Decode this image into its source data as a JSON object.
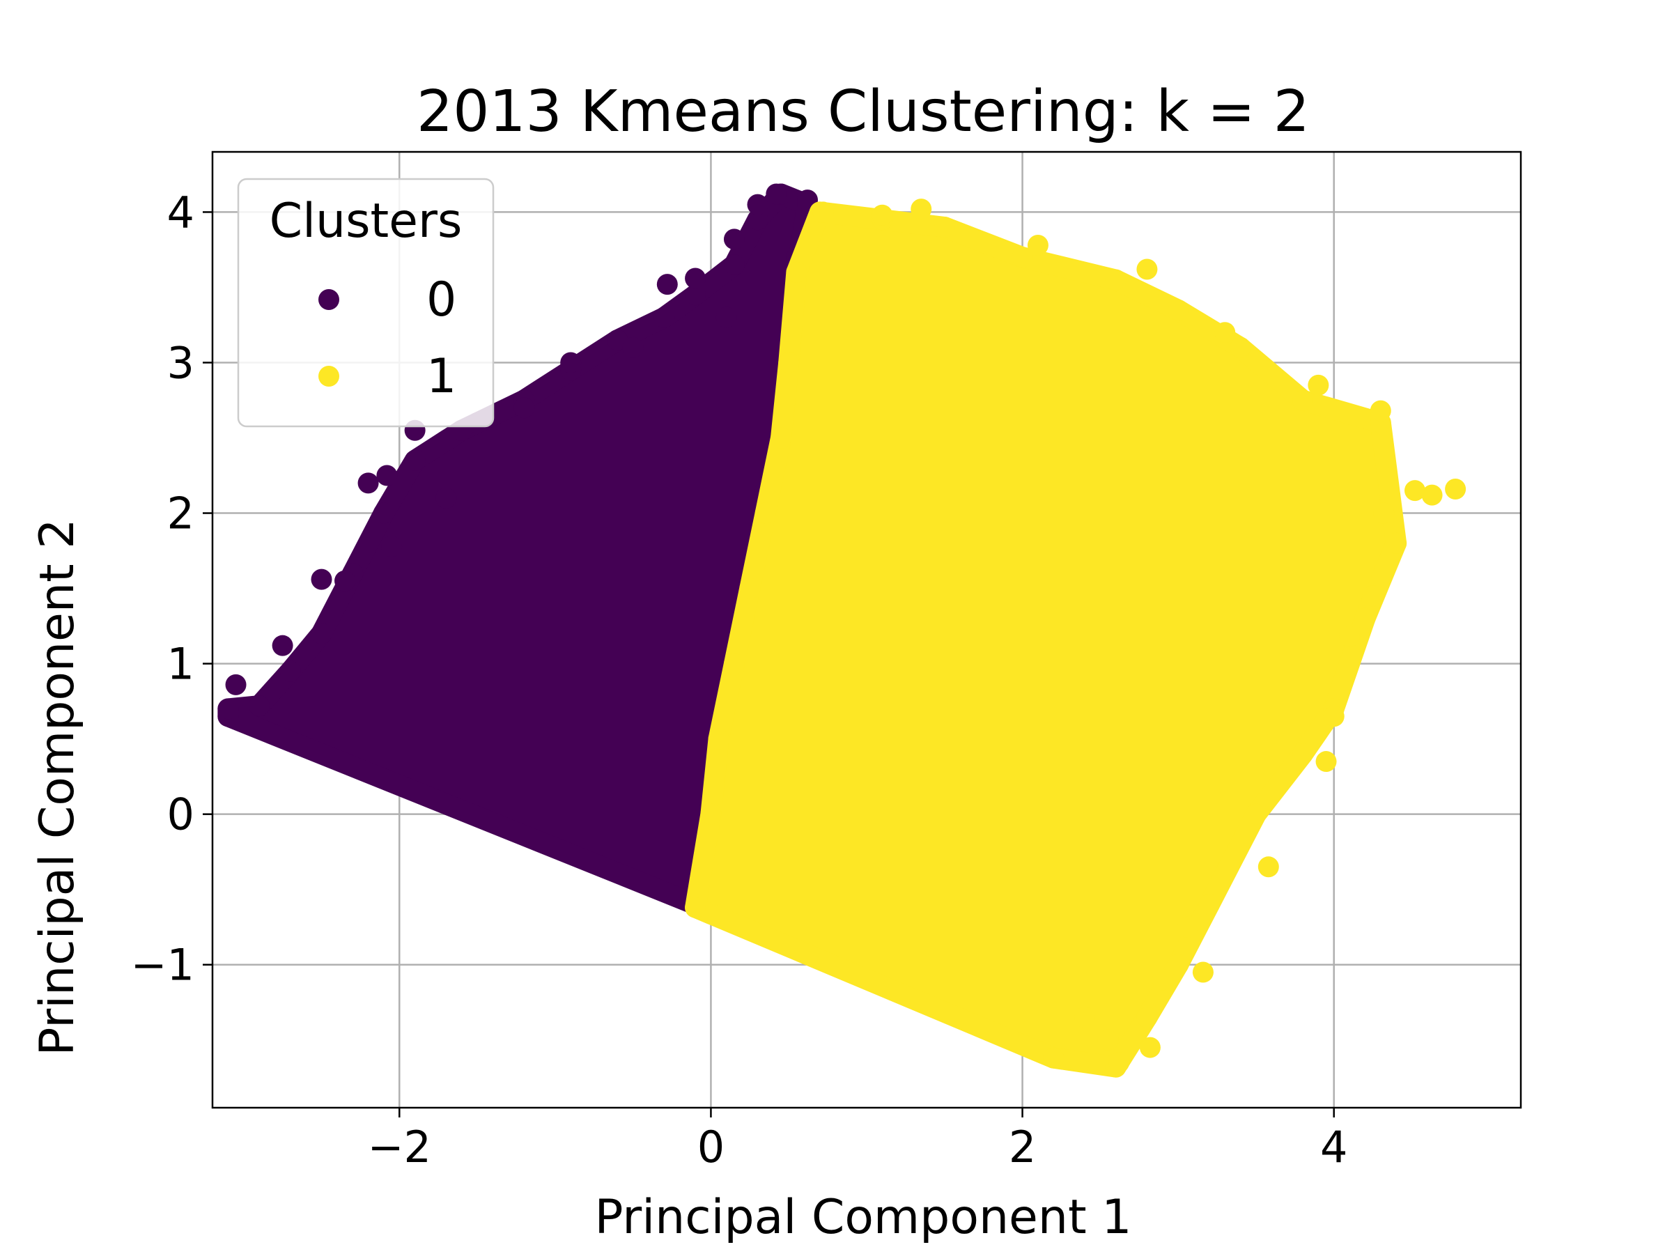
{
  "chart_data": {
    "type": "scatter",
    "title": "2013 Kmeans Clustering: k = 2",
    "xlabel": "Principal Component 1",
    "ylabel": "Principal Component 2",
    "xlim": [
      -3.2,
      5.2
    ],
    "ylim": [
      -1.95,
      4.4
    ],
    "xticks": [
      -2,
      0,
      2,
      4
    ],
    "xtick_labels": [
      "−2",
      "0",
      "2",
      "4"
    ],
    "yticks": [
      -1,
      0,
      1,
      2,
      3,
      4
    ],
    "ytick_labels": [
      "−1",
      "0",
      "1",
      "2",
      "3",
      "4"
    ],
    "grid": true,
    "legend": {
      "title": "Clusters",
      "placement": "upper-left",
      "entries": [
        {
          "label": "0",
          "color": "#440154"
        },
        {
          "label": "1",
          "color": "#fde725"
        }
      ]
    },
    "series": [
      {
        "cluster": 0,
        "color": "#440154",
        "region": [
          [
            -3.1,
            0.65
          ],
          [
            -3.1,
            0.7
          ],
          [
            -2.9,
            0.72
          ],
          [
            -2.7,
            0.95
          ],
          [
            -2.5,
            1.2
          ],
          [
            -2.3,
            1.6
          ],
          [
            -2.1,
            2.0
          ],
          [
            -1.9,
            2.35
          ],
          [
            -1.6,
            2.55
          ],
          [
            -1.2,
            2.75
          ],
          [
            -0.9,
            2.95
          ],
          [
            -0.6,
            3.15
          ],
          [
            -0.3,
            3.3
          ],
          [
            -0.1,
            3.45
          ],
          [
            0.15,
            3.65
          ],
          [
            0.3,
            3.95
          ],
          [
            0.45,
            4.12
          ],
          [
            0.62,
            4.05
          ],
          [
            0.55,
            3.6
          ],
          [
            0.5,
            3.0
          ],
          [
            0.45,
            2.5
          ],
          [
            0.35,
            2.0
          ],
          [
            0.25,
            1.5
          ],
          [
            0.15,
            1.0
          ],
          [
            0.05,
            0.5
          ],
          [
            0.0,
            0.0
          ],
          [
            -0.05,
            -0.55
          ],
          [
            -0.1,
            -0.6
          ]
        ],
        "points": [
          [
            -3.05,
            0.86
          ],
          [
            -2.75,
            1.12
          ],
          [
            -2.5,
            1.56
          ],
          [
            -2.2,
            2.2
          ],
          [
            -2.08,
            2.25
          ],
          [
            -1.9,
            2.55
          ],
          [
            -1.5,
            2.6
          ],
          [
            -1.2,
            2.7
          ],
          [
            -0.9,
            3.0
          ],
          [
            -0.5,
            3.1
          ],
          [
            -0.28,
            3.52
          ],
          [
            -0.1,
            3.56
          ],
          [
            0.15,
            3.82
          ],
          [
            0.3,
            4.05
          ],
          [
            0.42,
            4.12
          ],
          [
            0.62,
            4.08
          ],
          [
            0.55,
            3.7
          ],
          [
            0.1,
            3.3
          ],
          [
            0.35,
            2.15
          ],
          [
            -2.05,
            1.78
          ],
          [
            -1.7,
            2.1
          ],
          [
            -2.35,
            1.55
          ]
        ]
      },
      {
        "cluster": 1,
        "color": "#fde725",
        "region": [
          [
            -0.1,
            -0.62
          ],
          [
            0.0,
            0.0
          ],
          [
            0.05,
            0.5
          ],
          [
            0.15,
            1.0
          ],
          [
            0.25,
            1.5
          ],
          [
            0.35,
            2.0
          ],
          [
            0.45,
            2.5
          ],
          [
            0.5,
            3.0
          ],
          [
            0.55,
            3.6
          ],
          [
            0.7,
            4.0
          ],
          [
            1.1,
            3.95
          ],
          [
            1.5,
            3.9
          ],
          [
            2.0,
            3.7
          ],
          [
            2.6,
            3.55
          ],
          [
            3.0,
            3.35
          ],
          [
            3.4,
            3.1
          ],
          [
            3.8,
            2.75
          ],
          [
            4.3,
            2.6
          ],
          [
            4.4,
            1.8
          ],
          [
            4.2,
            1.3
          ],
          [
            4.0,
            0.7
          ],
          [
            3.8,
            0.4
          ],
          [
            3.5,
            0.0
          ],
          [
            3.2,
            -0.6
          ],
          [
            3.0,
            -1.0
          ],
          [
            2.8,
            -1.35
          ],
          [
            2.6,
            -1.68
          ],
          [
            2.2,
            -1.62
          ]
        ],
        "points": [
          [
            4.78,
            2.16
          ],
          [
            4.63,
            2.12
          ],
          [
            4.52,
            2.15
          ],
          [
            4.32,
            2.0
          ],
          [
            4.1,
            1.18
          ],
          [
            3.58,
            -0.35
          ],
          [
            3.16,
            -1.05
          ],
          [
            2.82,
            -1.55
          ],
          [
            2.62,
            -1.65
          ],
          [
            3.06,
            -0.75
          ],
          [
            4.0,
            0.65
          ],
          [
            3.95,
            0.35
          ],
          [
            4.25,
            1.45
          ],
          [
            1.35,
            4.02
          ],
          [
            1.1,
            3.98
          ],
          [
            0.72,
            4.0
          ],
          [
            2.1,
            3.78
          ],
          [
            2.8,
            3.62
          ],
          [
            3.3,
            3.2
          ],
          [
            4.3,
            2.68
          ],
          [
            3.9,
            2.85
          ],
          [
            2.55,
            -1.5
          ],
          [
            2.4,
            -1.35
          ],
          [
            2.9,
            -1.1
          ]
        ]
      }
    ]
  }
}
